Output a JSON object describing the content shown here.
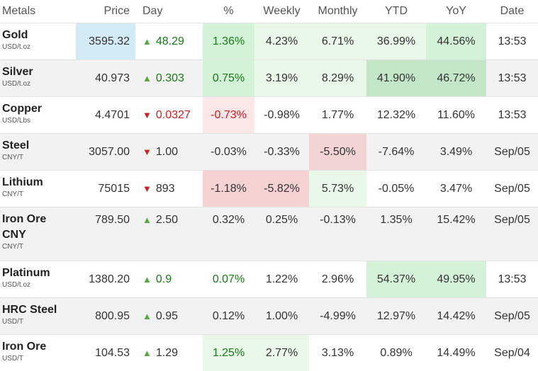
{
  "headers": {
    "metals": "Metals",
    "price": "Price",
    "day": "Day",
    "pct": "%",
    "weekly": "Weekly",
    "monthly": "Monthly",
    "ytd": "YTD",
    "yoy": "YoY",
    "date": "Date"
  },
  "rows": [
    {
      "name": "Gold",
      "unit": "USD/t.oz",
      "price": "3595.32",
      "day": "48.29",
      "pct": "1.36%",
      "weekly": "4.23%",
      "monthly": "6.71%",
      "ytd": "36.99%",
      "yoy": "44.56%",
      "date": "13:53"
    },
    {
      "name": "Silver",
      "unit": "USD/t.oz",
      "price": "40.973",
      "day": "0.303",
      "pct": "0.75%",
      "weekly": "3.19%",
      "monthly": "8.29%",
      "ytd": "41.90%",
      "yoy": "46.72%",
      "date": "13:53"
    },
    {
      "name": "Copper",
      "unit": "USD/Lbs",
      "price": "4.4701",
      "day": "0.0327",
      "pct": "-0.73%",
      "weekly": "-0.98%",
      "monthly": "1.77%",
      "ytd": "12.32%",
      "yoy": "11.60%",
      "date": "13:53"
    },
    {
      "name": "Steel",
      "unit": "CNY/T",
      "price": "3057.00",
      "day": "1.00",
      "pct": "-0.03%",
      "weekly": "-0.33%",
      "monthly": "-5.50%",
      "ytd": "-7.64%",
      "yoy": "3.49%",
      "date": "Sep/05"
    },
    {
      "name": "Lithium",
      "unit": "CNY/T",
      "price": "75015",
      "day": "893",
      "pct": "-1.18%",
      "weekly": "-5.82%",
      "monthly": "5.73%",
      "ytd": "-0.05%",
      "yoy": "3.47%",
      "date": "Sep/05"
    },
    {
      "name": "Iron Ore CNY",
      "unit": "CNY/T",
      "price": "789.50",
      "day": "2.50",
      "pct": "0.32%",
      "weekly": "0.25%",
      "monthly": "-0.13%",
      "ytd": "1.35%",
      "yoy": "15.42%",
      "date": "Sep/05"
    },
    {
      "name": "Platinum",
      "unit": "USD/t.oz",
      "price": "1380.20",
      "day": "0.9",
      "pct": "0.07%",
      "weekly": "1.22%",
      "monthly": "2.96%",
      "ytd": "54.37%",
      "yoy": "49.95%",
      "date": "13:53"
    },
    {
      "name": "HRC Steel",
      "unit": "USD/T",
      "price": "800.95",
      "day": "0.95",
      "pct": "0.12%",
      "weekly": "1.00%",
      "monthly": "-4.99%",
      "ytd": "12.97%",
      "yoy": "14.42%",
      "date": "Sep/05"
    },
    {
      "name": "Iron Ore",
      "unit": "USD/T",
      "price": "104.53",
      "day": "1.29",
      "pct": "1.25%",
      "weekly": "2.77%",
      "monthly": "3.13%",
      "ytd": "0.89%",
      "yoy": "14.49%",
      "date": "Sep/04"
    }
  ],
  "icons": {
    "up": "triangle-up-icon",
    "down": "triangle-down-icon"
  },
  "colors": {
    "up_arrow": "#56a73f",
    "down_arrow": "#d11e1e",
    "positive_pct": "#177b17",
    "price_highlight": "#d3eaf7"
  }
}
